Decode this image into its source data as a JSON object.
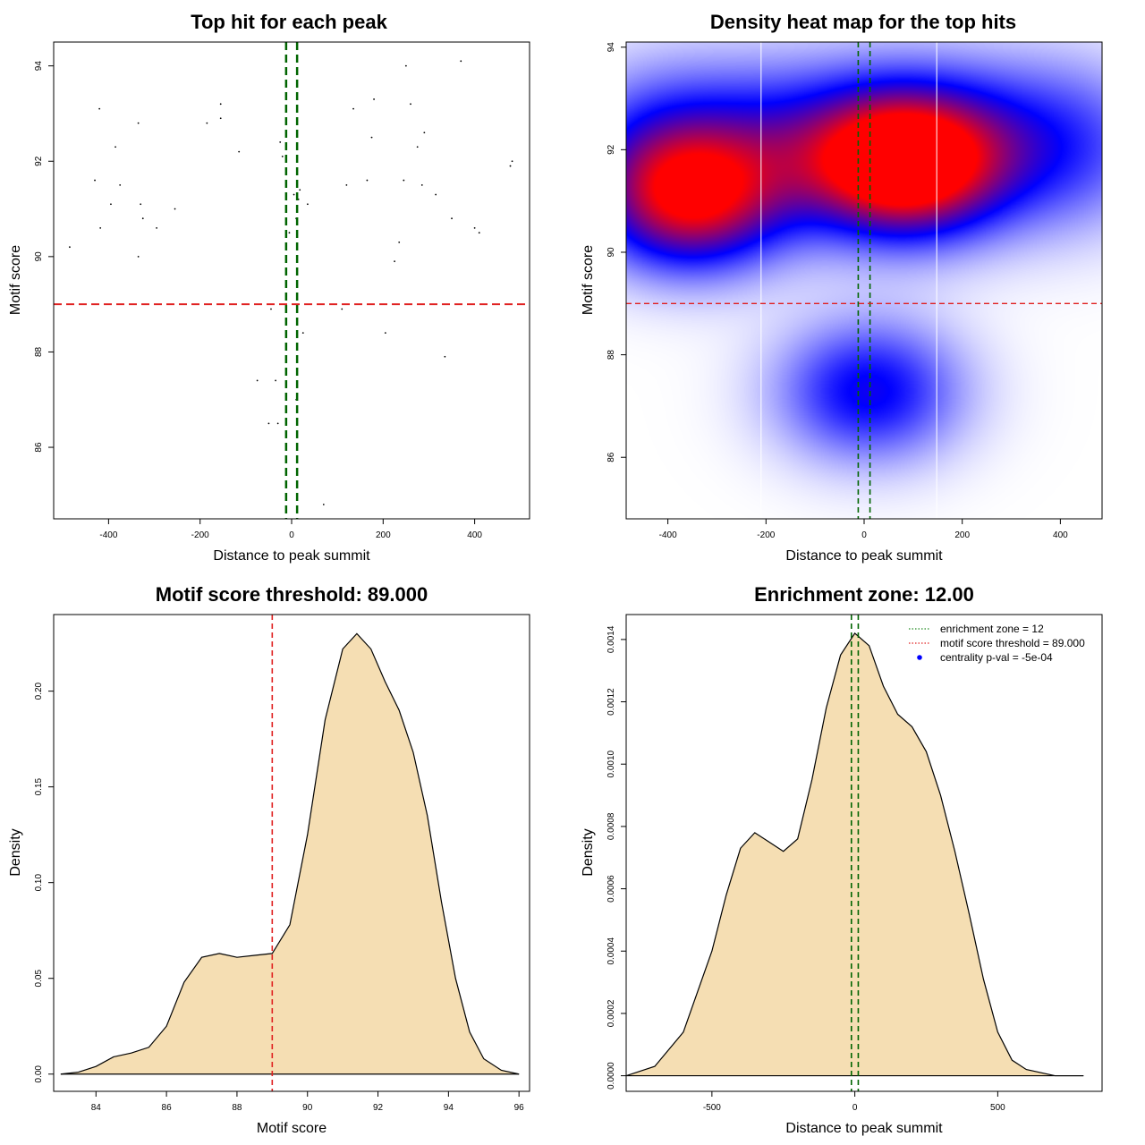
{
  "chart_data": [
    {
      "type": "scatter",
      "title": "Top hit for each peak",
      "xlabel": "Distance to peak summit",
      "ylabel": "Motif score",
      "xlim": [
        -520,
        520
      ],
      "ylim": [
        84.5,
        94.5
      ],
      "xticks": [
        -400,
        -200,
        0,
        200,
        400
      ],
      "yticks": [
        86,
        88,
        90,
        92,
        94
      ],
      "vlines": [
        -12,
        12
      ],
      "vline_color": "#006400",
      "hline": 89,
      "hline_color": "#e02020",
      "points": [
        [
          -485,
          90.2
        ],
        [
          -430,
          91.6
        ],
        [
          -420,
          93.1
        ],
        [
          -418,
          90.6
        ],
        [
          -395,
          91.1
        ],
        [
          -385,
          92.3
        ],
        [
          -375,
          91.5
        ],
        [
          -335,
          92.8
        ],
        [
          -330,
          91.1
        ],
        [
          -325,
          90.8
        ],
        [
          -335,
          90.0
        ],
        [
          -295,
          90.6
        ],
        [
          -255,
          91.0
        ],
        [
          -185,
          92.8
        ],
        [
          -155,
          93.2
        ],
        [
          -155,
          92.9
        ],
        [
          -115,
          92.2
        ],
        [
          -75,
          87.4
        ],
        [
          -50,
          86.5
        ],
        [
          -45,
          88.9
        ],
        [
          -35,
          87.4
        ],
        [
          -30,
          86.5
        ],
        [
          -25,
          92.4
        ],
        [
          -20,
          92.1
        ],
        [
          -5,
          90.5
        ],
        [
          5,
          91.3
        ],
        [
          10,
          90.8
        ],
        [
          10,
          87.0
        ],
        [
          15,
          91.2
        ],
        [
          18,
          91.4
        ],
        [
          25,
          88.4
        ],
        [
          35,
          91.1
        ],
        [
          70,
          84.8
        ],
        [
          110,
          88.9
        ],
        [
          120,
          91.5
        ],
        [
          135,
          93.1
        ],
        [
          165,
          91.6
        ],
        [
          175,
          92.5
        ],
        [
          180,
          93.3
        ],
        [
          205,
          88.4
        ],
        [
          225,
          89.9
        ],
        [
          235,
          90.3
        ],
        [
          245,
          91.6
        ],
        [
          250,
          94.0
        ],
        [
          260,
          93.2
        ],
        [
          275,
          92.3
        ],
        [
          285,
          91.5
        ],
        [
          290,
          92.6
        ],
        [
          315,
          91.3
        ],
        [
          335,
          87.9
        ],
        [
          350,
          90.8
        ],
        [
          370,
          94.1
        ],
        [
          400,
          90.6
        ],
        [
          410,
          90.5
        ],
        [
          478,
          91.9
        ],
        [
          482,
          92.0
        ]
      ]
    },
    {
      "type": "heatmap",
      "title": "Density heat map for the top hits",
      "xlabel": "Distance to peak summit",
      "ylabel": "Motif score",
      "xlim": [
        -485,
        485
      ],
      "ylim": [
        84.8,
        94.1
      ],
      "xticks": [
        -400,
        -200,
        0,
        200,
        400
      ],
      "yticks": [
        86,
        88,
        90,
        92,
        94
      ],
      "vlines": [
        -12,
        12
      ],
      "vline_color": "#006400",
      "white_vlines": [
        -210,
        148
      ],
      "hline": 89,
      "hline_color": "#e02020",
      "colors": [
        "#ffffff",
        "#0000ff",
        "#ff0000"
      ],
      "hotspots": [
        {
          "x": -355,
          "y": 91.0,
          "weight": 0.85
        },
        {
          "x": 80,
          "y": 91.7,
          "weight": 1.0
        },
        {
          "x": 10,
          "y": 87.3,
          "weight": 0.55
        }
      ]
    },
    {
      "type": "area",
      "title": "Motif score threshold: 89.000",
      "xlabel": "Motif score",
      "ylabel": "Density",
      "xlim": [
        82.8,
        96.3
      ],
      "ylim": [
        -0.009,
        0.24
      ],
      "xticks": [
        84,
        86,
        88,
        90,
        92,
        94,
        96
      ],
      "yticks": [
        0.0,
        0.05,
        0.1,
        0.15,
        0.2
      ],
      "ytick_labels": [
        "0.00",
        "0.05",
        "0.10",
        "0.15",
        "0.20"
      ],
      "fill": "#f5deb3",
      "vline": 89,
      "vline_color": "#e02020",
      "x": [
        83.0,
        83.5,
        84.0,
        84.5,
        85.0,
        85.5,
        86.0,
        86.5,
        87.0,
        87.5,
        88.0,
        88.5,
        89.0,
        89.5,
        90.0,
        90.5,
        91.0,
        91.4,
        91.8,
        92.2,
        92.6,
        93.0,
        93.4,
        93.8,
        94.2,
        94.6,
        95.0,
        95.5,
        96.0
      ],
      "y": [
        0.0,
        0.001,
        0.004,
        0.009,
        0.011,
        0.014,
        0.025,
        0.048,
        0.061,
        0.063,
        0.061,
        0.062,
        0.063,
        0.078,
        0.125,
        0.185,
        0.222,
        0.23,
        0.222,
        0.205,
        0.19,
        0.168,
        0.135,
        0.09,
        0.05,
        0.022,
        0.008,
        0.002,
        0.0
      ]
    },
    {
      "type": "area",
      "title": "Enrichment zone: 12.00",
      "xlabel": "Distance to peak summit",
      "ylabel": "Density",
      "xlim": [
        -800,
        865
      ],
      "ylim": [
        -5e-05,
        0.00148
      ],
      "xticks": [
        -500,
        0,
        500
      ],
      "yticks": [
        0.0,
        0.0002,
        0.0004,
        0.0006,
        0.0008,
        0.001,
        0.0012,
        0.0014
      ],
      "ytick_labels": [
        "0.0000",
        "0.0002",
        "0.0004",
        "0.0006",
        "0.0008",
        "0.0010",
        "0.0012",
        "0.0014"
      ],
      "fill": "#f5deb3",
      "vlines": [
        -12,
        12
      ],
      "vline_color": "#006400",
      "legend_position": "top-right",
      "legend": [
        {
          "label": "enrichment zone = 12",
          "color": "#228b22",
          "style": "dotted-line"
        },
        {
          "label": "motif score threshold = 89.000",
          "color": "#e02020",
          "style": "dotted-line"
        },
        {
          "label": "centrality p-val = -5e-04",
          "color": "#0000ff",
          "style": "point"
        }
      ],
      "x": [
        -800,
        -700,
        -600,
        -500,
        -450,
        -400,
        -350,
        -300,
        -250,
        -200,
        -150,
        -100,
        -50,
        0,
        50,
        100,
        150,
        200,
        250,
        300,
        350,
        400,
        450,
        500,
        550,
        600,
        700,
        800
      ],
      "y": [
        0.0,
        3e-05,
        0.00014,
        0.0004,
        0.00058,
        0.00073,
        0.00078,
        0.00075,
        0.00072,
        0.00076,
        0.00095,
        0.00118,
        0.00135,
        0.00142,
        0.00138,
        0.00125,
        0.00116,
        0.00112,
        0.00104,
        0.0009,
        0.00072,
        0.00052,
        0.00031,
        0.00014,
        5e-05,
        2e-05,
        0.0,
        0.0
      ]
    }
  ]
}
